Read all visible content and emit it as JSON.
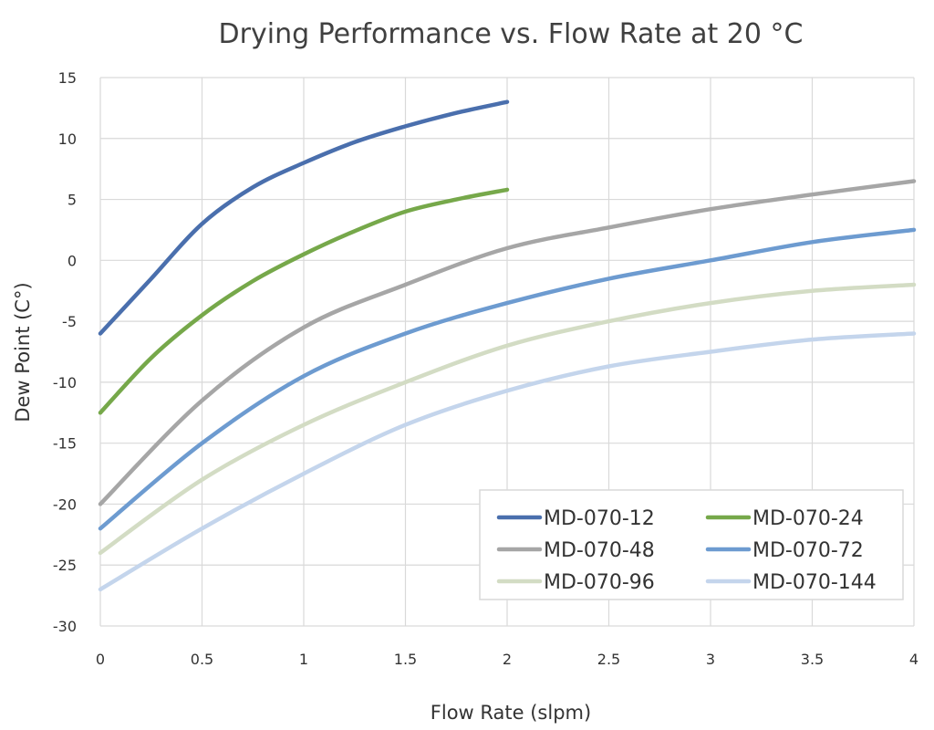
{
  "chart_data": {
    "type": "line",
    "title": "Drying Performance vs. Flow Rate at 20 °C",
    "xlabel": "Flow Rate (slpm)",
    "ylabel": "Dew Point (C°)",
    "xlim": [
      0,
      4
    ],
    "ylim": [
      -30,
      15
    ],
    "xticks": [
      "0",
      "0.5",
      "1",
      "1.5",
      "2",
      "2.5",
      "3",
      "3.5",
      "4"
    ],
    "yticks": [
      "15",
      "10",
      "5",
      "0",
      "-5",
      "-10",
      "-15",
      "-20",
      "-25",
      "-30"
    ],
    "grid": true,
    "legend_position": "bottom-right",
    "series": [
      {
        "name": "MD-070-12",
        "color": "#4a6fad",
        "x": [
          0,
          0.25,
          0.5,
          0.75,
          1,
          1.25,
          1.5,
          1.75,
          2
        ],
        "y": [
          -6,
          -1.5,
          3,
          6,
          8,
          9.7,
          11,
          12.1,
          13
        ]
      },
      {
        "name": "MD-070-24",
        "color": "#76a84a",
        "x": [
          0,
          0.25,
          0.5,
          0.75,
          1,
          1.25,
          1.5,
          1.75,
          2
        ],
        "y": [
          -12.5,
          -8,
          -4.5,
          -1.7,
          0.5,
          2.4,
          4,
          5,
          5.8
        ]
      },
      {
        "name": "MD-070-48",
        "color": "#a6a6a6",
        "x": [
          0,
          0.5,
          1,
          1.5,
          2,
          2.5,
          3,
          3.5,
          4
        ],
        "y": [
          -20,
          -11.5,
          -5.5,
          -2,
          1,
          2.7,
          4.2,
          5.4,
          6.5
        ]
      },
      {
        "name": "MD-070-72",
        "color": "#6d9bd0",
        "x": [
          0,
          0.5,
          1,
          1.5,
          2,
          2.5,
          3,
          3.5,
          4
        ],
        "y": [
          -22,
          -15,
          -9.5,
          -6,
          -3.5,
          -1.5,
          0,
          1.5,
          2.5
        ]
      },
      {
        "name": "MD-070-96",
        "color": "#d3dcc4",
        "x": [
          0,
          0.5,
          1,
          1.5,
          2,
          2.5,
          3,
          3.5,
          4
        ],
        "y": [
          -24,
          -18,
          -13.5,
          -10,
          -7,
          -5,
          -3.5,
          -2.5,
          -2
        ]
      },
      {
        "name": "MD-070-144",
        "color": "#c4d5ec",
        "x": [
          0,
          0.5,
          1,
          1.5,
          2,
          2.5,
          3,
          3.5,
          4
        ],
        "y": [
          -27,
          -22,
          -17.5,
          -13.5,
          -10.7,
          -8.7,
          -7.5,
          -6.5,
          -6
        ]
      }
    ]
  }
}
